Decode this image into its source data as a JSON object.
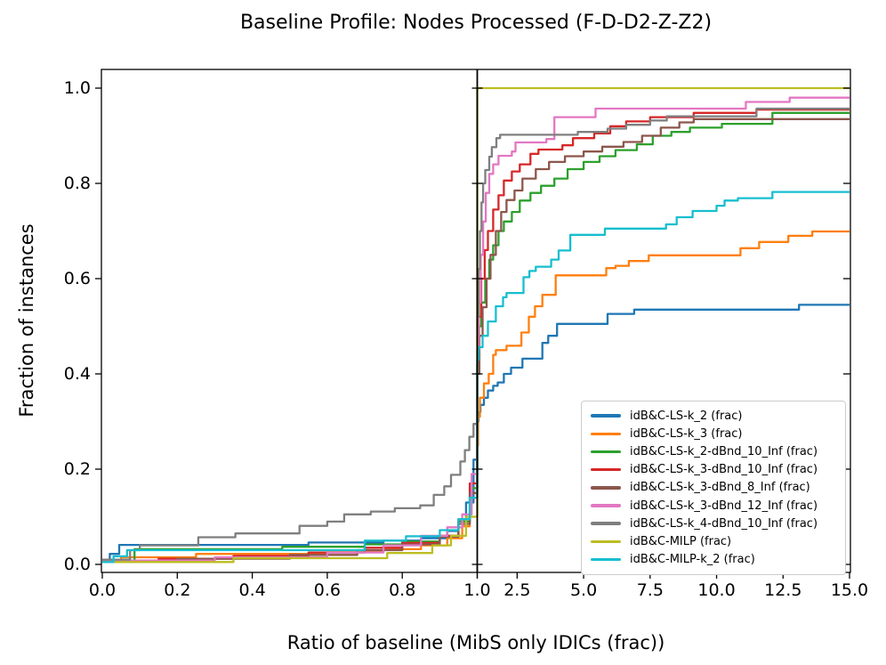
{
  "title": "Baseline Profile: Nodes Processed (F-D-D2-Z-Z2)",
  "chart_data": {
    "type": "line",
    "subtype": "step-post-performance-profile",
    "title": "Baseline Profile: Nodes Processed (F-D-D2-Z-Z2)",
    "xlabel": "Ratio of baseline (MibS only IDICs (frac))",
    "ylabel": "Fraction of instances",
    "grid": false,
    "legend_position": "lower right",
    "x_axis": {
      "split": true,
      "left_panel": {
        "min": 0,
        "max": 1,
        "ticks": [
          {
            "v": 0.0,
            "label": "0.0"
          },
          {
            "v": 0.2,
            "label": "0.2"
          },
          {
            "v": 0.4,
            "label": "0.4"
          },
          {
            "v": 0.6,
            "label": "0.6"
          },
          {
            "v": 0.8,
            "label": "0.8"
          },
          {
            "v": 1.0,
            "label": "1.0"
          }
        ]
      },
      "right_panel": {
        "min": 1,
        "max": 15,
        "ticks": [
          {
            "v": 2.5,
            "label": "2.5"
          },
          {
            "v": 5.0,
            "label": "5.0"
          },
          {
            "v": 7.5,
            "label": "7.5"
          },
          {
            "v": 10.0,
            "label": "10.0"
          },
          {
            "v": 12.5,
            "label": "12.5"
          },
          {
            "v": 15.0,
            "label": "15.0"
          }
        ]
      }
    },
    "y_axis": {
      "min": 0,
      "max": 1.04,
      "ticks": [
        {
          "v": 0.0,
          "label": "0.0"
        },
        {
          "v": 0.2,
          "label": "0.2"
        },
        {
          "v": 0.4,
          "label": "0.4"
        },
        {
          "v": 0.6,
          "label": "0.6"
        },
        {
          "v": 0.8,
          "label": "0.8"
        },
        {
          "v": 1.0,
          "label": "1.0"
        }
      ]
    },
    "series": [
      {
        "name": "idB&C-LS-k_2 (frac)",
        "color": "#1f77b4",
        "final_value": 0.545,
        "points": [
          [
            0,
            0.005
          ],
          [
            0.02,
            0.022
          ],
          [
            0.045,
            0.041
          ],
          [
            0.55,
            0.046
          ],
          [
            0.75,
            0.05
          ],
          [
            0.85,
            0.055
          ],
          [
            0.92,
            0.07
          ],
          [
            0.95,
            0.09
          ],
          [
            0.97,
            0.13
          ],
          [
            0.99,
            0.22
          ],
          [
            1.0,
            0.3
          ],
          [
            1.05,
            0.32
          ],
          [
            1.12,
            0.335
          ],
          [
            1.25,
            0.35
          ],
          [
            1.4,
            0.365
          ],
          [
            1.6,
            0.375
          ],
          [
            1.77,
            0.382
          ],
          [
            2.0,
            0.4
          ],
          [
            2.27,
            0.413
          ],
          [
            2.7,
            0.432
          ],
          [
            3.45,
            0.465
          ],
          [
            3.67,
            0.48
          ],
          [
            4.0,
            0.505
          ],
          [
            5.9,
            0.526
          ],
          [
            6.9,
            0.535
          ],
          [
            13.1,
            0.545
          ]
        ]
      },
      {
        "name": "idB&C-LS-k_3 (frac)",
        "color": "#ff7f0e",
        "final_value": 0.7,
        "points": [
          [
            0,
            0.005
          ],
          [
            0.05,
            0.015
          ],
          [
            0.25,
            0.022
          ],
          [
            0.6,
            0.026
          ],
          [
            0.75,
            0.032
          ],
          [
            0.85,
            0.04
          ],
          [
            0.92,
            0.055
          ],
          [
            0.96,
            0.08
          ],
          [
            0.98,
            0.14
          ],
          [
            1.0,
            0.25
          ],
          [
            1.03,
            0.31
          ],
          [
            1.1,
            0.35
          ],
          [
            1.25,
            0.38
          ],
          [
            1.43,
            0.4
          ],
          [
            1.6,
            0.44
          ],
          [
            1.7,
            0.45
          ],
          [
            2.1,
            0.459
          ],
          [
            2.66,
            0.487
          ],
          [
            2.94,
            0.52
          ],
          [
            3.17,
            0.542
          ],
          [
            3.45,
            0.566
          ],
          [
            3.95,
            0.607
          ],
          [
            5.85,
            0.622
          ],
          [
            6.2,
            0.627
          ],
          [
            6.7,
            0.637
          ],
          [
            7.45,
            0.649
          ],
          [
            10.9,
            0.664
          ],
          [
            11.6,
            0.677
          ],
          [
            12.7,
            0.69
          ],
          [
            13.6,
            0.699
          ]
        ]
      },
      {
        "name": "idB&C-LS-k_2-dBnd_10_Inf (frac)",
        "color": "#2ca02c",
        "final_value": 0.948,
        "points": [
          [
            0,
            0.005
          ],
          [
            0.086,
            0.032
          ],
          [
            0.48,
            0.037
          ],
          [
            0.7,
            0.042
          ],
          [
            0.8,
            0.048
          ],
          [
            0.9,
            0.06
          ],
          [
            0.95,
            0.09
          ],
          [
            0.98,
            0.16
          ],
          [
            1.0,
            0.42
          ],
          [
            1.07,
            0.5
          ],
          [
            1.15,
            0.55
          ],
          [
            1.3,
            0.6
          ],
          [
            1.45,
            0.64
          ],
          [
            1.6,
            0.67
          ],
          [
            1.8,
            0.7
          ],
          [
            2.0,
            0.72
          ],
          [
            2.3,
            0.74
          ],
          [
            2.6,
            0.764
          ],
          [
            3.0,
            0.78
          ],
          [
            3.4,
            0.795
          ],
          [
            3.9,
            0.81
          ],
          [
            4.4,
            0.83
          ],
          [
            5.0,
            0.845
          ],
          [
            5.6,
            0.857
          ],
          [
            6.2,
            0.87
          ],
          [
            7.0,
            0.882
          ],
          [
            7.6,
            0.9
          ],
          [
            8.3,
            0.908
          ],
          [
            9.0,
            0.917
          ],
          [
            10.2,
            0.925
          ],
          [
            12.1,
            0.948
          ]
        ]
      },
      {
        "name": "idB&C-LS-k_3-dBnd_10_Inf (frac)",
        "color": "#d62728",
        "final_value": 0.955,
        "points": [
          [
            0,
            0.005
          ],
          [
            0.15,
            0.012
          ],
          [
            0.35,
            0.018
          ],
          [
            0.55,
            0.025
          ],
          [
            0.7,
            0.035
          ],
          [
            0.8,
            0.045
          ],
          [
            0.9,
            0.06
          ],
          [
            0.95,
            0.095
          ],
          [
            0.98,
            0.17
          ],
          [
            1.0,
            0.42
          ],
          [
            1.06,
            0.52
          ],
          [
            1.15,
            0.6
          ],
          [
            1.28,
            0.66
          ],
          [
            1.4,
            0.7
          ],
          [
            1.6,
            0.745
          ],
          [
            1.8,
            0.775
          ],
          [
            2.0,
            0.806
          ],
          [
            2.3,
            0.825
          ],
          [
            2.6,
            0.84
          ],
          [
            3.0,
            0.862
          ],
          [
            3.3,
            0.871
          ],
          [
            4.2,
            0.88
          ],
          [
            4.6,
            0.895
          ],
          [
            5.4,
            0.905
          ],
          [
            6.0,
            0.92
          ],
          [
            6.6,
            0.93
          ],
          [
            7.5,
            0.939
          ],
          [
            9.14,
            0.948
          ],
          [
            11.5,
            0.955
          ]
        ]
      },
      {
        "name": "idB&C-LS-k_3-dBnd_8_Inf (frac)",
        "color": "#8c564b",
        "final_value": 0.935,
        "points": [
          [
            0,
            0.005
          ],
          [
            0.2,
            0.012
          ],
          [
            0.5,
            0.02
          ],
          [
            0.68,
            0.03
          ],
          [
            0.8,
            0.042
          ],
          [
            0.9,
            0.058
          ],
          [
            0.95,
            0.085
          ],
          [
            0.98,
            0.15
          ],
          [
            1.0,
            0.4
          ],
          [
            1.08,
            0.48
          ],
          [
            1.2,
            0.54
          ],
          [
            1.35,
            0.6
          ],
          [
            1.5,
            0.65
          ],
          [
            1.7,
            0.7
          ],
          [
            1.9,
            0.74
          ],
          [
            2.1,
            0.765
          ],
          [
            2.4,
            0.785
          ],
          [
            2.7,
            0.81
          ],
          [
            3.2,
            0.83
          ],
          [
            3.7,
            0.845
          ],
          [
            4.3,
            0.857
          ],
          [
            5.0,
            0.867
          ],
          [
            5.7,
            0.877
          ],
          [
            6.5,
            0.887
          ],
          [
            7.2,
            0.9
          ],
          [
            7.9,
            0.917
          ],
          [
            8.6,
            0.928
          ],
          [
            9.14,
            0.935
          ]
        ]
      },
      {
        "name": "idB&C-LS-k_3-dBnd_12_Inf (frac)",
        "color": "#e377c2",
        "final_value": 0.98,
        "points": [
          [
            0,
            0.008
          ],
          [
            0.3,
            0.015
          ],
          [
            0.6,
            0.025
          ],
          [
            0.75,
            0.04
          ],
          [
            0.85,
            0.06
          ],
          [
            0.92,
            0.078
          ],
          [
            0.96,
            0.105
          ],
          [
            0.985,
            0.19
          ],
          [
            1.0,
            0.45
          ],
          [
            1.06,
            0.55
          ],
          [
            1.13,
            0.65
          ],
          [
            1.22,
            0.72
          ],
          [
            1.32,
            0.78
          ],
          [
            1.45,
            0.82
          ],
          [
            1.6,
            0.84
          ],
          [
            1.8,
            0.858
          ],
          [
            2.3,
            0.867
          ],
          [
            2.44,
            0.886
          ],
          [
            3.6,
            0.893
          ],
          [
            3.9,
            0.939
          ],
          [
            5.45,
            0.957
          ],
          [
            11.1,
            0.971
          ],
          [
            12.75,
            0.98
          ]
        ]
      },
      {
        "name": "idB&C-LS-k_4-dBnd_10_Inf (frac)",
        "color": "#7f7f7f",
        "final_value": 0.957,
        "points": [
          [
            0,
            0.01
          ],
          [
            0.074,
            0.03
          ],
          [
            0.1,
            0.04
          ],
          [
            0.256,
            0.057
          ],
          [
            0.355,
            0.065
          ],
          [
            0.526,
            0.081
          ],
          [
            0.6,
            0.09
          ],
          [
            0.645,
            0.105
          ],
          [
            0.716,
            0.111
          ],
          [
            0.78,
            0.118
          ],
          [
            0.848,
            0.124
          ],
          [
            0.884,
            0.146
          ],
          [
            0.912,
            0.164
          ],
          [
            0.93,
            0.188
          ],
          [
            0.955,
            0.216
          ],
          [
            0.967,
            0.24
          ],
          [
            0.979,
            0.268
          ],
          [
            0.99,
            0.295
          ],
          [
            1.0,
            0.52
          ],
          [
            1.05,
            0.62
          ],
          [
            1.1,
            0.7
          ],
          [
            1.16,
            0.76
          ],
          [
            1.22,
            0.8
          ],
          [
            1.3,
            0.828
          ],
          [
            1.45,
            0.856
          ],
          [
            1.55,
            0.876
          ],
          [
            1.72,
            0.895
          ],
          [
            1.86,
            0.902
          ],
          [
            4.78,
            0.908
          ],
          [
            5.9,
            0.915
          ],
          [
            6.6,
            0.923
          ],
          [
            7.5,
            0.932
          ],
          [
            8.13,
            0.941
          ],
          [
            11.5,
            0.957
          ]
        ]
      },
      {
        "name": "idB&C-MILP (frac)",
        "color": "#bcbd22",
        "final_value": 1.0,
        "points": [
          [
            0,
            0.005
          ],
          [
            0.35,
            0.013
          ],
          [
            0.76,
            0.024
          ],
          [
            0.88,
            0.04
          ],
          [
            0.93,
            0.06
          ],
          [
            0.97,
            0.1
          ],
          [
            1.0,
            1.0
          ]
        ]
      },
      {
        "name": "idB&C-MILP-k_2 (frac)",
        "color": "#17becf",
        "final_value": 0.782,
        "points": [
          [
            0,
            0.005
          ],
          [
            0.03,
            0.017
          ],
          [
            0.066,
            0.03
          ],
          [
            0.7,
            0.05
          ],
          [
            0.81,
            0.059
          ],
          [
            0.9,
            0.072
          ],
          [
            0.95,
            0.095
          ],
          [
            0.98,
            0.14
          ],
          [
            1.0,
            0.43
          ],
          [
            1.05,
            0.456
          ],
          [
            1.2,
            0.48
          ],
          [
            1.4,
            0.51
          ],
          [
            1.7,
            0.542
          ],
          [
            1.97,
            0.561
          ],
          [
            2.1,
            0.57
          ],
          [
            2.74,
            0.603
          ],
          [
            2.96,
            0.616
          ],
          [
            3.2,
            0.625
          ],
          [
            3.78,
            0.64
          ],
          [
            4.06,
            0.659
          ],
          [
            4.5,
            0.692
          ],
          [
            5.8,
            0.705
          ],
          [
            8.1,
            0.714
          ],
          [
            8.5,
            0.729
          ],
          [
            9.1,
            0.742
          ],
          [
            10.0,
            0.753
          ],
          [
            10.3,
            0.764
          ],
          [
            10.8,
            0.769
          ],
          [
            12.1,
            0.782
          ]
        ]
      }
    ]
  }
}
